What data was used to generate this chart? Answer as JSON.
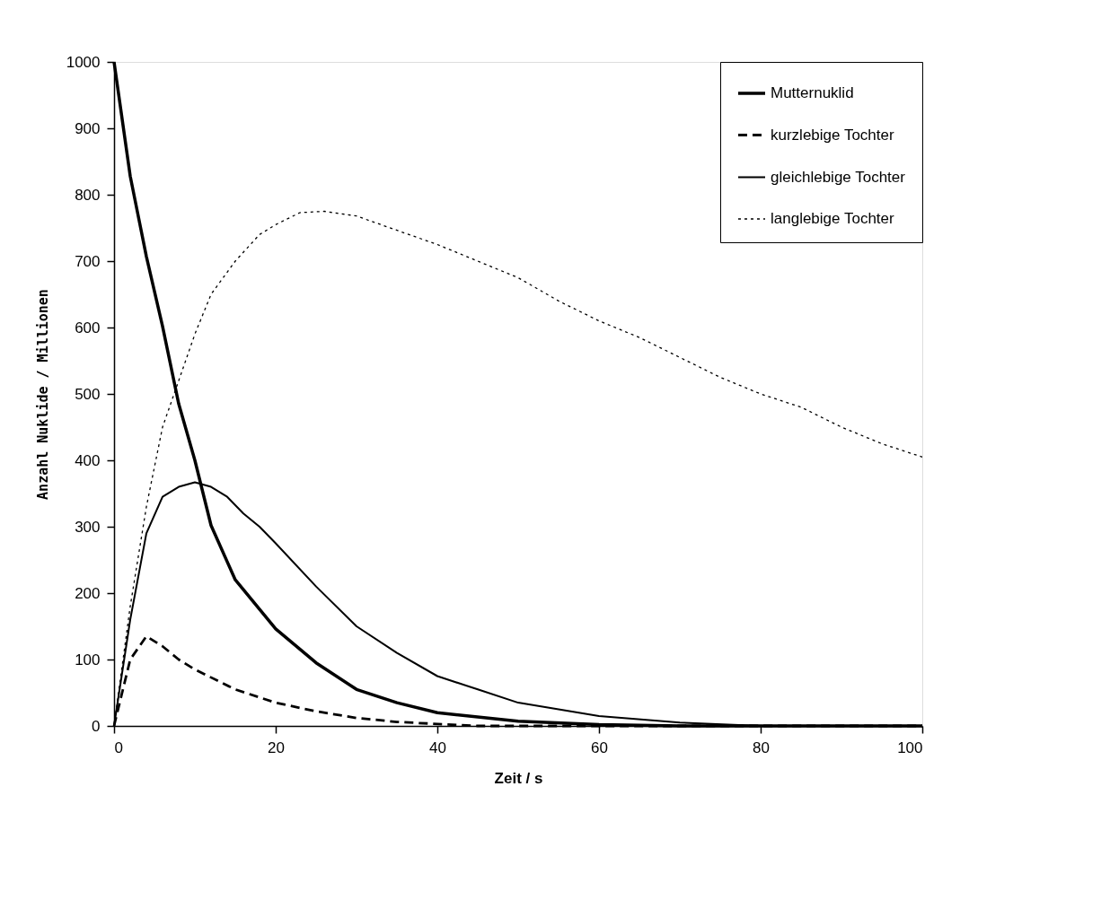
{
  "chart_data": {
    "type": "line",
    "xlabel": "Zeit  / s",
    "ylabel": "Anzahl Nuklide   / Millionen",
    "xlim": [
      0,
      100
    ],
    "ylim": [
      0,
      1000
    ],
    "xticks": [
      0,
      20,
      40,
      60,
      80,
      100
    ],
    "yticks": [
      0,
      100,
      200,
      300,
      400,
      500,
      600,
      700,
      800,
      900,
      1000
    ],
    "grid": false,
    "legend": "top right",
    "marker": "none",
    "series": [
      {
        "name": "Mutternuklid",
        "color": "#000000",
        "line_style": "solid",
        "x": [
          0,
          2,
          4,
          6,
          8,
          10,
          12,
          15,
          20,
          25,
          30,
          35,
          40,
          50,
          60,
          70,
          80,
          90,
          100
        ],
        "values": [
          1000,
          828,
          707,
          602,
          485,
          400,
          302,
          220,
          146,
          95,
          55,
          35,
          20,
          7,
          2,
          0,
          0,
          0,
          0
        ]
      },
      {
        "name": "kurzlebige Tochter",
        "color": "#000000",
        "line_style": "dashed",
        "x": [
          0,
          2,
          4,
          6,
          8,
          10,
          15,
          20,
          25,
          30,
          35,
          45,
          60,
          80,
          100
        ],
        "values": [
          0,
          100,
          135,
          120,
          100,
          85,
          55,
          35,
          22,
          12,
          6,
          0,
          0,
          0,
          0
        ]
      },
      {
        "name": "gleichlebige Tochter",
        "color": "#000000",
        "line_style": "solid",
        "x": [
          0,
          2,
          4,
          6,
          8,
          10,
          12,
          14,
          16,
          18,
          20,
          25,
          30,
          35,
          40,
          45,
          50,
          60,
          70,
          80,
          90,
          100
        ],
        "values": [
          0,
          160,
          290,
          345,
          360,
          367,
          360,
          345,
          320,
          300,
          275,
          210,
          150,
          110,
          75,
          55,
          35,
          15,
          5,
          0,
          0,
          0
        ]
      },
      {
        "name": "langlebige Tochter",
        "color": "#000000",
        "line_style": "dotted",
        "x": [
          0,
          2,
          4,
          6,
          8,
          10,
          12,
          15,
          18,
          20,
          23,
          26,
          30,
          33,
          40,
          45,
          50,
          55,
          60,
          65,
          70,
          75,
          80,
          85,
          90,
          95,
          100
        ],
        "values": [
          0,
          180,
          330,
          450,
          520,
          590,
          650,
          700,
          740,
          755,
          773,
          775,
          768,
          755,
          725,
          700,
          675,
          640,
          610,
          585,
          555,
          525,
          500,
          480,
          450,
          425,
          405
        ]
      }
    ]
  }
}
